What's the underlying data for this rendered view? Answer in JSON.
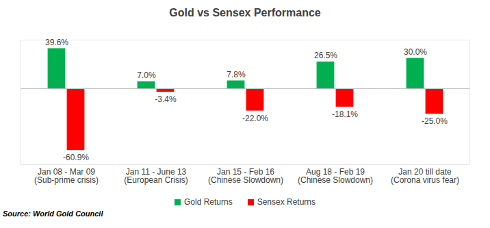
{
  "chart_data": {
    "type": "bar",
    "title": "Gold vs Sensex Performance",
    "source": "Source: World Gold Council",
    "categories": [
      "Jan 08 - Mar 09\n(Sub-prime crisis)",
      "Jan 11 - June 13\n(European Crisis)",
      "Jan 15 - Feb 16\n(Chinese Slowdown)",
      "Aug 18 - Feb 19\n(Chinese Slowdown)",
      "Jan 20 till date\n(Corona virus fear)"
    ],
    "series": [
      {
        "name": "Gold Returns",
        "color": "#00b050",
        "values": [
          39.6,
          7.0,
          7.8,
          26.5,
          30.0
        ],
        "value_labels": [
          "39.6%",
          "7.0%",
          "7.8%",
          "26.5%",
          "30.0%"
        ]
      },
      {
        "name": "Sensex Returns",
        "color": "#ff0000",
        "values": [
          -60.9,
          -3.4,
          -22.0,
          -18.1,
          -25.0
        ],
        "value_labels": [
          "-60.9%",
          "-3.4%",
          "-22.0%",
          "-18.1%",
          "-25.0%"
        ]
      }
    ],
    "ylim": [
      -75,
      48
    ],
    "yticks": [
      0
    ],
    "grid": false,
    "legend": "bottom",
    "data_labels": true,
    "tick_labels": "x"
  }
}
